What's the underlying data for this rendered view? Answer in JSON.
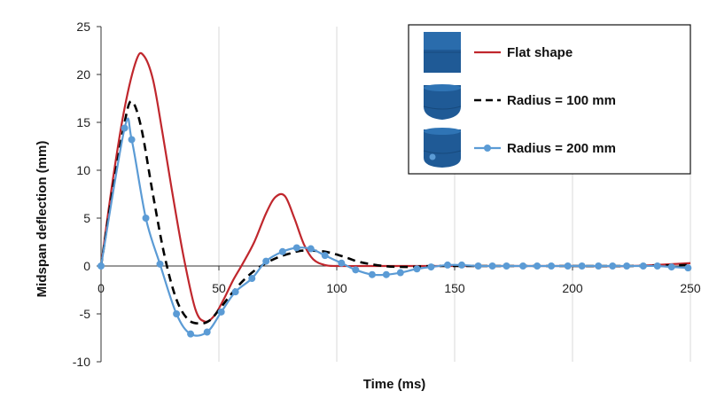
{
  "chart_data": {
    "type": "line",
    "xlabel": "Time (ms)",
    "ylabel": "Midspan deflection (mm)",
    "xlim": [
      0,
      250
    ],
    "ylim": [
      -10,
      25
    ],
    "x_ticks": [
      0,
      50,
      100,
      150,
      200,
      250
    ],
    "y_ticks": [
      -10,
      -5,
      0,
      5,
      10,
      15,
      20,
      25
    ],
    "grid": "vertical",
    "legend_position": "top-right",
    "series": [
      {
        "name": "Flat shape",
        "color": "#c0272d",
        "style": "solid",
        "markers": false,
        "legend_icon": "cylinder-flat-icon",
        "x": [
          0,
          5,
          10,
          15,
          18,
          22,
          26,
          30,
          35,
          40,
          44,
          48,
          52,
          56,
          60,
          65,
          70,
          74,
          78,
          82,
          86,
          90,
          95,
          100,
          110,
          120,
          130,
          140,
          150,
          175,
          200,
          225,
          250
        ],
        "y": [
          0,
          9,
          16.5,
          21.5,
          22,
          19.5,
          14,
          8,
          1,
          -4.5,
          -5.8,
          -5.2,
          -3.5,
          -1.5,
          0.2,
          2.5,
          5.5,
          7.2,
          7.3,
          5,
          2.3,
          0.7,
          0.1,
          0,
          0,
          0,
          0,
          0,
          0,
          0,
          0,
          0,
          0.3
        ]
      },
      {
        "name": "Radius = 100 mm",
        "color": "#000000",
        "style": "dashed",
        "markers": false,
        "legend_icon": "cylinder-radius-100-icon",
        "x": [
          0,
          5,
          10,
          13,
          17,
          22,
          27,
          32,
          37,
          42,
          46,
          50,
          55,
          60,
          65,
          70,
          75,
          80,
          85,
          90,
          95,
          100,
          105,
          110,
          120,
          130,
          140,
          150,
          175,
          200,
          225,
          250
        ],
        "y": [
          0,
          8,
          15,
          17.2,
          14.5,
          7.5,
          1,
          -3.5,
          -5.6,
          -6,
          -5.7,
          -4.6,
          -3,
          -1.6,
          -0.5,
          0.3,
          0.9,
          1.3,
          1.6,
          1.6,
          1.5,
          1.2,
          0.8,
          0.4,
          0,
          -0.1,
          0,
          0,
          0,
          0,
          0,
          0.1
        ]
      },
      {
        "name": "Radius = 200 mm",
        "color": "#5b9bd5",
        "style": "solid",
        "markers": true,
        "legend_icon": "cylinder-radius-200-icon",
        "x": [
          0,
          10,
          13,
          19,
          25,
          32,
          38,
          45,
          51,
          57,
          64,
          70,
          77,
          83,
          89,
          95,
          102,
          108,
          115,
          121,
          127,
          134,
          140,
          147,
          153,
          160,
          166,
          172,
          179,
          185,
          191,
          198,
          204,
          211,
          217,
          223,
          230,
          236,
          242,
          249
        ],
        "y": [
          0,
          14.4,
          13.2,
          5,
          0.2,
          -5,
          -7.1,
          -6.9,
          -4.8,
          -2.7,
          -1.3,
          0.5,
          1.5,
          1.9,
          1.8,
          1.1,
          0.3,
          -0.4,
          -0.9,
          -0.9,
          -0.7,
          -0.3,
          -0.1,
          0.1,
          0.1,
          0,
          0,
          0,
          0,
          0,
          0,
          0,
          0,
          0,
          0,
          0,
          0,
          0,
          -0.1,
          -0.2
        ]
      }
    ]
  }
}
